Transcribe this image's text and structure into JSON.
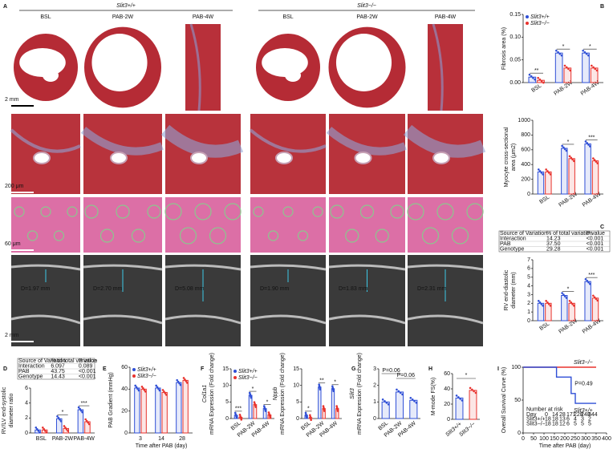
{
  "panel_A": {
    "letter": "A",
    "groups": [
      {
        "genotype": "Slit3+/+",
        "columns": [
          "BSL",
          "PAB-2W",
          "PAB-4W"
        ]
      },
      {
        "genotype": "Slit3−/−",
        "columns": [
          "BSL",
          "PAB-2W",
          "PAB-4W"
        ]
      }
    ],
    "scale_bars": [
      "2 mm",
      "200 μm",
      "60 μm",
      "2 mm"
    ],
    "echo_diameters": [
      "D=1.97 mm",
      "D=2.70 mm",
      "D=5.08 mm",
      "D=1.90 mm",
      "D=1.83 mm",
      "D=2.31 mm"
    ]
  },
  "charts": [
    {
      "type": "bar",
      "letter": "B",
      "y_label": [
        "Fibrosis area (%)"
      ],
      "categories": [
        "BSL",
        "PAB-2W",
        "PAB-4W"
      ],
      "series": [
        {
          "name": "Slit3+/+",
          "color": "#2f4fd6",
          "values": [
            0.012,
            0.065,
            0.065
          ]
        },
        {
          "name": "Slit3−/−",
          "color": "#e8322d",
          "values": [
            0.005,
            0.032,
            0.032
          ]
        }
      ],
      "ylim": [
        0,
        0.15
      ],
      "yticks": [
        {
          "value": 0,
          "label": "0.00"
        },
        {
          "value": 0.05,
          "label": "0.05"
        },
        {
          "value": 0.1,
          "label": "0.10"
        },
        {
          "value": 0.15,
          "label": "0.15"
        }
      ],
      "significance": [
        "**",
        "*",
        "*"
      ],
      "legend": "upper left"
    },
    {
      "type": "bar",
      "y_label": [
        "Myocyte cross-sectional",
        "area (μm2)"
      ],
      "categories": [
        "BSL",
        "PAB-2W",
        "PAB-4W"
      ],
      "series": [
        {
          "color": "#2f4fd6",
          "values": [
            300,
            620,
            680
          ]
        },
        {
          "color": "#e8322d",
          "values": [
            300,
            480,
            450
          ]
        }
      ],
      "ylim": [
        0,
        1000
      ],
      "yticks": [
        0,
        200,
        400,
        600,
        800,
        1000
      ],
      "significance": [
        null,
        "*",
        "***"
      ]
    },
    {
      "type": "bar",
      "letter": "C",
      "y_label": [
        "RV end-diastolic",
        "diameter (mm)"
      ],
      "categories": [
        "BSL",
        "PAB-2W",
        "PAB-4W"
      ],
      "series": [
        {
          "color": "#2f4fd6",
          "values": [
            2.0,
            2.9,
            4.5
          ]
        },
        {
          "color": "#e8322d",
          "values": [
            2.0,
            2.0,
            2.6
          ]
        }
      ],
      "ylim": [
        0,
        7
      ],
      "yticks": [
        0,
        1,
        2,
        3,
        4,
        5,
        6,
        7
      ],
      "significance": [
        null,
        "*",
        "***"
      ],
      "table": {
        "header": [
          "Source of Variation",
          "% of total variation",
          "P value"
        ],
        "rows": [
          [
            "Interaction",
            "14.23",
            "<0.001"
          ],
          [
            "PAB",
            "37.50",
            "<0.001"
          ],
          [
            "Genotype",
            "29.28",
            "<0.001"
          ]
        ]
      }
    },
    {
      "type": "bar",
      "letter": "D",
      "y_label": [
        "RV/LV end-systolic",
        "diameter ratio"
      ],
      "categories": [
        "BSL",
        "PAB-2W",
        "PAB-4W"
      ],
      "series": [
        {
          "color": "#2f4fd6",
          "values": [
            0.4,
            1.9,
            3.1
          ]
        },
        {
          "color": "#e8322d",
          "values": [
            0.4,
            0.6,
            1.5
          ]
        }
      ],
      "ylim": [
        0,
        6
      ],
      "yticks": [
        0,
        2,
        4,
        6
      ],
      "significance": [
        null,
        "*",
        "***"
      ],
      "table": {
        "header": [
          "Source of Variation",
          "% of total variation",
          "P value"
        ],
        "rows": [
          [
            "Interaction",
            "6.097",
            "0.089"
          ],
          [
            "PAB",
            "43.75",
            "<0.001"
          ],
          [
            "Genotype",
            "14.43",
            "<0.001"
          ]
        ]
      }
    },
    {
      "type": "bar",
      "letter": "E",
      "y_label": [
        "PAB Gradient (mmHg)"
      ],
      "x_label": "Time after PAB (day)",
      "categories": [
        "3",
        "14",
        "28"
      ],
      "series": [
        {
          "name": "Slit3+/+",
          "color": "#2f4fd6",
          "values": [
            41,
            41,
            46
          ]
        },
        {
          "name": "Slit3−/−",
          "color": "#e8322d",
          "values": [
            40,
            37,
            48
          ]
        }
      ],
      "ylim": [
        0,
        60
      ],
      "yticks": [
        0,
        20,
        40,
        60
      ],
      "legend": "upper left"
    },
    {
      "type": "bar",
      "letter": "F",
      "y_label": [
        "Col1a1",
        "mRNA Expression (Fold change)"
      ],
      "categories": [
        "BSL",
        "PAB-2W",
        "PAB-4W"
      ],
      "series": [
        {
          "name": "Slit3+/+",
          "color": "#2f4fd6",
          "values": [
            1,
            7,
            3
          ]
        },
        {
          "name": "Slit3−/−",
          "color": "#e8322d",
          "values": [
            0.4,
            4.2,
            1.1
          ]
        }
      ],
      "ylim": [
        0,
        15
      ],
      "yticks": [
        0,
        5,
        10,
        15
      ],
      "significance": [
        "***",
        "*",
        "*"
      ],
      "legend": "upper left"
    },
    {
      "type": "bar",
      "y_label": [
        "Nppb",
        "mRNA Expression (Fold change)"
      ],
      "categories": [
        "BSL",
        "PAB-2W",
        "PAB-4W"
      ],
      "series": [
        {
          "color": "#2f4fd6",
          "values": [
            1,
            9.5,
            9
          ]
        },
        {
          "color": "#e8322d",
          "values": [
            0.3,
            3,
            3
          ]
        }
      ],
      "ylim": [
        0,
        15
      ],
      "yticks": [
        0,
        5,
        10,
        15
      ],
      "significance": [
        "*",
        "**",
        "*"
      ]
    },
    {
      "type": "bar",
      "letter": "G",
      "y_label": [
        "Slit3",
        "mRNA Expression (Fold change)"
      ],
      "categories": [
        "BSL",
        "PAB-2W",
        "PAB-4W"
      ],
      "series": [
        {
          "color": "#2f4fd6",
          "values": [
            1.0,
            1.6,
            1.1
          ]
        }
      ],
      "ylim": [
        0,
        3
      ],
      "yticks": [
        0,
        1,
        2,
        3
      ],
      "annotations": [
        "P=0.06",
        "P=0.06"
      ]
    },
    {
      "type": "bar",
      "letter": "H",
      "y_label": [
        "M-mode FS(%)"
      ],
      "categories": [
        "Slit3+/+",
        "Slit3−/−"
      ],
      "series": [
        {
          "colors": [
            "#2f4fd6",
            "#e8322d"
          ],
          "values": [
            28,
            38
          ]
        }
      ],
      "ylim": [
        0,
        60
      ],
      "yticks": [
        0,
        20,
        40,
        60
      ],
      "annotations": [
        "*"
      ]
    },
    {
      "type": "step",
      "letter": "I",
      "y_label": [
        "Overall Survival Curve (%)"
      ],
      "x_label": "Time after PAB (day)",
      "xlim": [
        0,
        400
      ],
      "xticks": [
        0,
        50,
        100,
        150,
        200,
        250,
        300,
        350,
        400
      ],
      "ylim": [
        0,
        100
      ],
      "yticks": [
        0,
        50,
        100
      ],
      "series": [
        {
          "name": "Slit3−/−",
          "color": "#e8322d",
          "x": [
            0,
            350
          ],
          "values": [
            100,
            100
          ]
        },
        {
          "name": "Slit3+/+",
          "color": "#2f4fd6",
          "x": [
            0,
            160,
            160,
            230,
            230,
            250,
            250,
            350
          ],
          "values": [
            100,
            100,
            85,
            85,
            60,
            60,
            45,
            45
          ]
        }
      ],
      "annotations": [
        "P=0.49"
      ],
      "risk_table": {
        "title": "Number at risk",
        "header": [
          "Day",
          "0",
          "14",
          "28",
          "171",
          "228",
          "248",
          "344"
        ],
        "rows": [
          [
            "Slit3+/+",
            "18",
            "18",
            "13",
            "6",
            "4",
            "3",
            "2"
          ],
          [
            "Slit3−/−",
            "18",
            "18",
            "12",
            "6",
            "5",
            "5",
            "5"
          ]
        ]
      }
    }
  ]
}
